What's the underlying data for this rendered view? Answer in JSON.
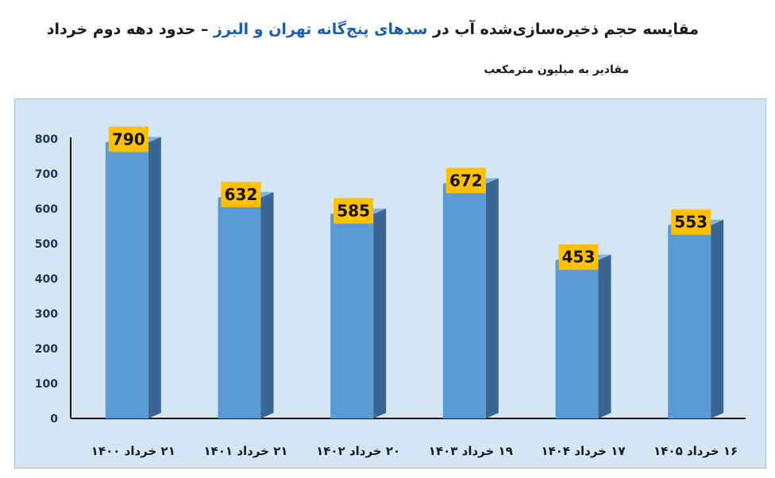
{
  "title": {
    "part1": "مقایسه حجم ذخیره‌سازی‌شده آب در",
    "highlight": "سدهای پنج‌گانه تهران و البرز",
    "part2": "– حدود دهه دوم خرداد"
  },
  "subtitle": "مقادیر به میلیون مترمکعب",
  "colors": {
    "bar_front": "#5b9bd5",
    "bar_top": "#82b4e2",
    "bar_side": "#3a6594",
    "label_bg": "#ffc000",
    "title_highlight": "#1d5ca8",
    "panel_bg": "#d4e6f4"
  },
  "chart_data": {
    "type": "bar",
    "title": "مقایسه حجم ذخیره‌سازی‌شده آب در سدهای پنج‌گانه تهران و البرز – حدود دهه دوم خرداد",
    "subtitle": "مقادیر به میلیون مترمکعب",
    "categories": [
      "۲۱ خرداد ۱۴۰۰",
      "۲۱ خرداد ۱۴۰۱",
      "۲۰ خرداد ۱۴۰۲",
      "۱۹ خرداد ۱۴۰۳",
      "۱۷ خرداد ۱۴۰۴",
      "۱۶ خرداد ۱۴۰۵"
    ],
    "values": [
      790,
      632,
      585,
      672,
      453,
      553
    ],
    "ylim": [
      0,
      800
    ],
    "yticks": [
      0,
      100,
      200,
      300,
      400,
      500,
      600,
      700,
      800
    ],
    "xlabel": "",
    "ylabel": "",
    "grid": false,
    "legend": "none",
    "data_labels": true
  }
}
